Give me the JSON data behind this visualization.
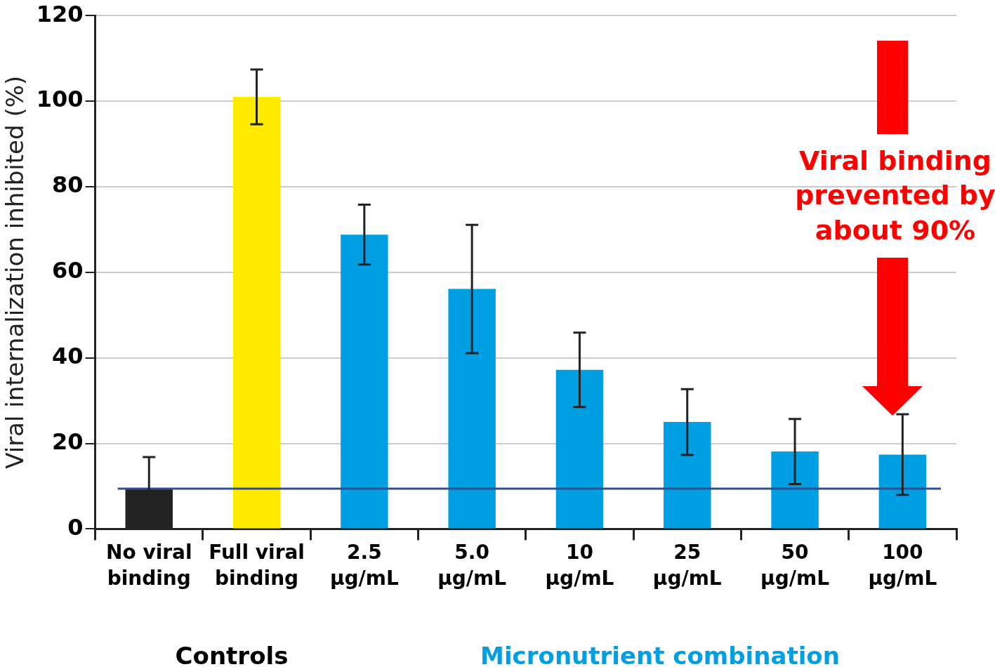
{
  "chart_data": {
    "type": "bar",
    "ylabel": "Viral internalization inhibited (%)",
    "categories": [
      "No viral binding",
      "Full viral binding",
      "2.5 µg/mL",
      "5.0 µg/mL",
      "10 µg/mL",
      "25 µg/mL",
      "50 µg/mL",
      "100 µg/mL"
    ],
    "values": [
      9.4,
      101,
      68.8,
      56.1,
      37.2,
      25,
      18.1,
      17.4
    ],
    "errors": [
      7.4,
      6.4,
      7,
      15,
      8.7,
      7.7,
      7.6,
      9.4
    ],
    "colors": [
      "#222222",
      "#ffea00",
      "#009fe3",
      "#009fe3",
      "#009fe3",
      "#009fe3",
      "#009fe3",
      "#009fe3"
    ],
    "ylim": [
      0,
      120
    ],
    "yticks": [
      0,
      20,
      40,
      60,
      80,
      100,
      120
    ],
    "grid": "y",
    "ref_lines": [
      {
        "axis": "y",
        "value": 9.4,
        "color": "#2f4f8f"
      }
    ],
    "annotations": [
      "Viral binding prevented by about 90%",
      "Controls",
      "Micronutrient combination"
    ]
  }
}
